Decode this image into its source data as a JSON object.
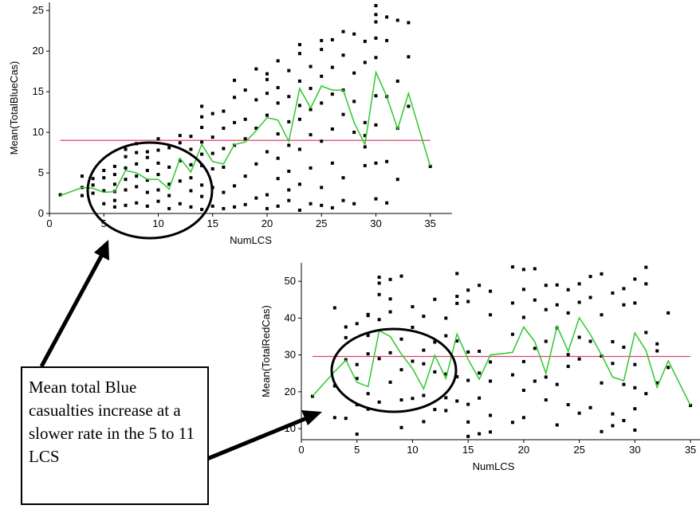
{
  "colors": {
    "points": "#000000",
    "mean_line": "#e0406a",
    "smoother": "#2ec82e",
    "annotation": "#000000"
  },
  "annotation_text": "Mean total Blue casualties increase at a slower rate in the 5 to 11 LCS",
  "chart_data": [
    {
      "type": "scatter",
      "xlabel": "NumLCS",
      "ylabel": "Mean(TotalBlueCas)",
      "xlim": [
        0,
        37
      ],
      "ylim": [
        0,
        26
      ],
      "xticks": [
        "0",
        "5",
        "10",
        "15",
        "20",
        "25",
        "30",
        "35"
      ],
      "yticks": [
        "0",
        "5",
        "10",
        "15",
        "20",
        "25"
      ],
      "mean_line": 9,
      "points": [
        [
          1,
          2.3
        ],
        [
          3,
          2.2
        ],
        [
          3,
          3.2
        ],
        [
          3,
          4.6
        ],
        [
          4,
          2.5
        ],
        [
          4,
          3.5
        ],
        [
          4,
          4.3
        ],
        [
          5,
          1.2
        ],
        [
          5,
          2.8
        ],
        [
          5,
          4.4
        ],
        [
          5,
          5.3
        ],
        [
          6,
          0.8
        ],
        [
          6,
          1.6
        ],
        [
          6,
          2.7
        ],
        [
          6,
          3.6
        ],
        [
          6,
          4.8
        ],
        [
          6,
          5.8
        ],
        [
          7,
          1.0
        ],
        [
          7,
          2.9
        ],
        [
          7,
          4.2
        ],
        [
          7,
          5.6
        ],
        [
          7,
          7.0
        ],
        [
          7,
          7.9
        ],
        [
          8,
          1.3
        ],
        [
          8,
          3.3
        ],
        [
          8,
          4.6
        ],
        [
          8,
          6.1
        ],
        [
          8,
          7.5
        ],
        [
          8,
          8.6
        ],
        [
          9,
          0.9
        ],
        [
          9,
          2.6
        ],
        [
          9,
          4.1
        ],
        [
          9,
          5.3
        ],
        [
          9,
          6.9
        ],
        [
          9,
          7.6
        ],
        [
          10,
          1.5
        ],
        [
          10,
          2.9
        ],
        [
          10,
          4.8
        ],
        [
          10,
          6.2
        ],
        [
          10,
          7.8
        ],
        [
          10,
          9.2
        ],
        [
          11,
          0.6
        ],
        [
          11,
          2.2
        ],
        [
          11,
          3.6
        ],
        [
          11,
          5.7
        ],
        [
          11,
          8.1
        ],
        [
          12,
          1.2
        ],
        [
          12,
          4.0
        ],
        [
          12,
          6.5
        ],
        [
          12,
          8.7
        ],
        [
          12,
          9.6
        ],
        [
          13,
          0.8
        ],
        [
          13,
          2.8
        ],
        [
          13,
          4.4
        ],
        [
          13,
          6.0
        ],
        [
          13,
          7.9
        ],
        [
          13,
          9.5
        ],
        [
          14,
          0.5
        ],
        [
          14,
          2.1
        ],
        [
          14,
          3.5
        ],
        [
          14,
          5.9
        ],
        [
          14,
          7.3
        ],
        [
          14,
          8.8
        ],
        [
          14,
          10.6
        ],
        [
          14,
          11.9
        ],
        [
          14,
          13.2
        ],
        [
          15,
          0.9
        ],
        [
          15,
          3.2
        ],
        [
          15,
          5.5
        ],
        [
          15,
          7.4
        ],
        [
          15,
          9.4
        ],
        [
          15,
          12.3
        ],
        [
          16,
          0.6
        ],
        [
          16,
          2.6
        ],
        [
          16,
          5.7
        ],
        [
          16,
          8.0
        ],
        [
          16,
          10.5
        ],
        [
          16,
          12.6
        ],
        [
          17,
          0.8
        ],
        [
          17,
          3.4
        ],
        [
          17,
          8.4
        ],
        [
          17,
          11.2
        ],
        [
          17,
          14.3
        ],
        [
          17,
          16.4
        ],
        [
          18,
          1.1
        ],
        [
          18,
          4.6
        ],
        [
          18,
          9.2
        ],
        [
          18,
          11.6
        ],
        [
          18,
          15.2
        ],
        [
          19,
          1.9
        ],
        [
          19,
          6.1
        ],
        [
          19,
          10.5
        ],
        [
          19,
          14.0
        ],
        [
          19,
          17.8
        ],
        [
          20,
          0.6
        ],
        [
          20,
          2.3
        ],
        [
          20,
          7.6
        ],
        [
          20,
          12.1
        ],
        [
          20,
          14.8
        ],
        [
          20,
          16.5
        ],
        [
          20,
          17.2
        ],
        [
          21,
          0.9
        ],
        [
          21,
          4.3
        ],
        [
          21,
          6.8
        ],
        [
          21,
          9.8
        ],
        [
          21,
          13.6
        ],
        [
          21,
          15.5
        ],
        [
          21,
          18.8
        ],
        [
          22,
          1.6
        ],
        [
          22,
          2.9
        ],
        [
          22,
          5.2
        ],
        [
          22,
          8.4
        ],
        [
          22,
          11.3
        ],
        [
          22,
          14.4
        ],
        [
          22,
          17.6
        ],
        [
          23,
          0.4
        ],
        [
          23,
          3.6
        ],
        [
          23,
          7.9
        ],
        [
          23,
          11.6
        ],
        [
          23,
          13.3
        ],
        [
          23,
          16.3
        ],
        [
          23,
          19.7
        ],
        [
          23,
          20.8
        ],
        [
          24,
          1.2
        ],
        [
          24,
          5.6
        ],
        [
          24,
          9.7
        ],
        [
          24,
          12.8
        ],
        [
          24,
          15.4
        ],
        [
          24,
          18.1
        ],
        [
          25,
          1.0
        ],
        [
          25,
          3.2
        ],
        [
          25,
          8.9
        ],
        [
          25,
          13.6
        ],
        [
          25,
          16.9
        ],
        [
          25,
          20.2
        ],
        [
          25,
          21.3
        ],
        [
          26,
          0.7
        ],
        [
          26,
          6.2
        ],
        [
          26,
          10.4
        ],
        [
          26,
          14.7
        ],
        [
          26,
          18.0
        ],
        [
          26,
          21.4
        ],
        [
          27,
          1.6
        ],
        [
          27,
          4.4
        ],
        [
          27,
          12.2
        ],
        [
          27,
          15.2
        ],
        [
          27,
          19.5
        ],
        [
          27,
          22.4
        ],
        [
          28,
          1.2
        ],
        [
          28,
          10.0
        ],
        [
          28,
          13.8
        ],
        [
          28,
          17.3
        ],
        [
          28,
          22.1
        ],
        [
          29,
          5.9
        ],
        [
          29,
          8.2
        ],
        [
          29,
          9.6
        ],
        [
          29,
          11.2
        ],
        [
          29,
          18.6
        ],
        [
          29,
          21.2
        ],
        [
          30,
          1.8
        ],
        [
          30,
          6.2
        ],
        [
          30,
          10.9
        ],
        [
          30,
          14.5
        ],
        [
          30,
          19.2
        ],
        [
          30,
          21.6
        ],
        [
          30,
          23.6
        ],
        [
          30,
          24.5
        ],
        [
          30,
          25.6
        ],
        [
          30,
          26.6
        ],
        [
          31,
          1.3
        ],
        [
          31,
          6.4
        ],
        [
          31,
          14.4
        ],
        [
          31,
          21.3
        ],
        [
          31,
          24.2
        ],
        [
          32,
          4.2
        ],
        [
          32,
          10.5
        ],
        [
          32,
          16.3
        ],
        [
          32,
          23.8
        ],
        [
          33,
          13.2
        ],
        [
          33,
          19.3
        ],
        [
          33,
          23.5
        ],
        [
          35,
          5.8
        ]
      ],
      "smoother": {
        "x": [
          1,
          3,
          4,
          5,
          6,
          7,
          8,
          9,
          10,
          11,
          12,
          13,
          14,
          15,
          16,
          17,
          18,
          19,
          20,
          21,
          22,
          23,
          24,
          25,
          26,
          27,
          28,
          29,
          30,
          31,
          32,
          33,
          35
        ],
        "y": [
          2.2,
          3.2,
          3.1,
          2.6,
          2.7,
          5.3,
          5.0,
          4.2,
          4.2,
          3.0,
          6.8,
          5.1,
          8.5,
          6.4,
          6.1,
          8.5,
          8.8,
          10.2,
          11.8,
          11.5,
          8.9,
          15.4,
          13.0,
          15.7,
          15.2,
          15.2,
          11.2,
          8.5,
          17.4,
          14.4,
          10.4,
          14.8,
          5.8
        ]
      }
    },
    {
      "type": "scatter",
      "xlabel": "NumLCS",
      "ylabel": "Mean(TotalRedCas)",
      "xlim": [
        0,
        36
      ],
      "ylim": [
        7,
        55
      ],
      "xticks": [
        "0",
        "5",
        "10",
        "15",
        "20",
        "25",
        "30",
        "35"
      ],
      "yticks": [
        "10",
        "20",
        "30",
        "40",
        "50"
      ],
      "mean_line": 29.6,
      "points": [
        [
          1,
          18.8
        ],
        [
          3,
          13.0
        ],
        [
          3,
          21.6
        ],
        [
          3,
          42.8
        ],
        [
          4,
          12.8
        ],
        [
          4,
          28.7
        ],
        [
          4,
          34.7
        ],
        [
          4,
          37.6
        ],
        [
          5,
          8.5
        ],
        [
          5,
          16.5
        ],
        [
          5,
          23.6
        ],
        [
          5,
          27.4
        ],
        [
          5,
          38.5
        ],
        [
          6,
          15.3
        ],
        [
          6,
          19.5
        ],
        [
          6,
          30.3
        ],
        [
          6,
          35.3
        ],
        [
          6,
          40.7
        ],
        [
          6,
          41.0
        ],
        [
          7,
          17.2
        ],
        [
          7,
          29.0
        ],
        [
          7,
          39.6
        ],
        [
          7,
          46.4
        ],
        [
          7,
          49.5
        ],
        [
          7,
          51.1
        ],
        [
          8,
          22.6
        ],
        [
          8,
          30.6
        ],
        [
          8,
          41.7
        ],
        [
          8,
          45.2
        ],
        [
          8,
          50.5
        ],
        [
          9,
          10.3
        ],
        [
          9,
          17.8
        ],
        [
          9,
          26.0
        ],
        [
          9,
          34.3
        ],
        [
          9,
          51.4
        ],
        [
          10,
          18.2
        ],
        [
          10,
          28.3
        ],
        [
          10,
          37.5
        ],
        [
          10,
          43.1
        ],
        [
          11,
          11.9
        ],
        [
          11,
          19.0
        ],
        [
          11,
          27.6
        ],
        [
          11,
          31.3
        ],
        [
          11,
          40.5
        ],
        [
          12,
          15.2
        ],
        [
          12,
          25.4
        ],
        [
          12,
          33.5
        ],
        [
          12,
          45.1
        ],
        [
          13,
          14.9
        ],
        [
          13,
          18.4
        ],
        [
          13,
          24.8
        ],
        [
          13,
          35.2
        ],
        [
          13,
          40.0
        ],
        [
          14,
          17.5
        ],
        [
          14,
          24.1
        ],
        [
          14,
          33.8
        ],
        [
          14,
          44.0
        ],
        [
          14,
          45.9
        ],
        [
          14,
          52.1
        ],
        [
          15,
          7.9
        ],
        [
          15,
          11.8
        ],
        [
          15,
          16.6
        ],
        [
          15,
          23.1
        ],
        [
          15,
          30.8
        ],
        [
          15,
          44.5
        ],
        [
          15,
          47.6
        ],
        [
          16,
          8.6
        ],
        [
          16,
          18.3
        ],
        [
          16,
          25.1
        ],
        [
          16,
          31.0
        ],
        [
          16,
          48.9
        ],
        [
          17,
          9.1
        ],
        [
          17,
          13.6
        ],
        [
          17,
          22.9
        ],
        [
          17,
          28.1
        ],
        [
          17,
          40.9
        ],
        [
          17,
          47.3
        ],
        [
          19,
          11.7
        ],
        [
          19,
          24.6
        ],
        [
          19,
          35.6
        ],
        [
          19,
          44.1
        ],
        [
          19,
          53.9
        ],
        [
          20,
          13.0
        ],
        [
          20,
          20.4
        ],
        [
          20,
          28.2
        ],
        [
          20,
          40.2
        ],
        [
          20,
          47.8
        ],
        [
          20,
          53.2
        ],
        [
          21,
          22.9
        ],
        [
          21,
          31.8
        ],
        [
          21,
          44.9
        ],
        [
          21,
          53.4
        ],
        [
          22,
          17.8
        ],
        [
          22,
          24.0
        ],
        [
          22,
          33.7
        ],
        [
          22,
          42.3
        ],
        [
          22,
          48.9
        ],
        [
          23,
          11.0
        ],
        [
          23,
          22.0
        ],
        [
          23,
          37.3
        ],
        [
          23,
          43.6
        ],
        [
          23,
          49.0
        ],
        [
          24,
          16.5
        ],
        [
          24,
          26.9
        ],
        [
          24,
          30.1
        ],
        [
          24,
          41.4
        ],
        [
          24,
          47.7
        ],
        [
          25,
          14.2
        ],
        [
          25,
          28.9
        ],
        [
          25,
          34.8
        ],
        [
          25,
          44.3
        ],
        [
          25,
          49.3
        ],
        [
          26,
          15.7
        ],
        [
          26,
          33.7
        ],
        [
          26,
          45.6
        ],
        [
          26,
          51.3
        ],
        [
          27,
          9.2
        ],
        [
          27,
          22.4
        ],
        [
          27,
          29.7
        ],
        [
          27,
          40.9
        ],
        [
          27,
          52.0
        ],
        [
          28,
          10.8
        ],
        [
          28,
          14.0
        ],
        [
          28,
          27.7
        ],
        [
          28,
          33.6
        ],
        [
          28,
          46.8
        ],
        [
          29,
          12.2
        ],
        [
          29,
          22.0
        ],
        [
          29,
          32.1
        ],
        [
          29,
          43.6
        ],
        [
          29,
          48.0
        ],
        [
          30,
          9.6
        ],
        [
          30,
          15.4
        ],
        [
          30,
          21.1
        ],
        [
          30,
          27.4
        ],
        [
          30,
          44.1
        ],
        [
          30,
          50.6
        ],
        [
          31,
          19.5
        ],
        [
          31,
          36.1
        ],
        [
          31,
          49.3
        ],
        [
          31,
          53.8
        ],
        [
          32,
          22.4
        ],
        [
          32,
          31.1
        ],
        [
          32,
          33.0
        ],
        [
          33,
          26.6
        ],
        [
          33,
          41.4
        ],
        [
          35,
          16.3
        ]
      ],
      "smoother": {
        "x": [
          1,
          3,
          4,
          5,
          6,
          7,
          8,
          9,
          10,
          11,
          12,
          13,
          14,
          15,
          16,
          17,
          19,
          20,
          21,
          22,
          23,
          24,
          25,
          26,
          27,
          28,
          29,
          30,
          31,
          32,
          33,
          35
        ],
        "y": [
          18.8,
          25.5,
          28.6,
          22.6,
          21.4,
          36.6,
          35.0,
          30.2,
          26.3,
          20.8,
          29.9,
          23.6,
          35.7,
          28.8,
          23.4,
          30.0,
          30.7,
          37.6,
          33.6,
          25.0,
          37.8,
          31.0,
          40.1,
          35.5,
          30.0,
          24.0,
          23.0,
          36.0,
          31.2,
          21.2,
          28.4,
          16.3
        ]
      }
    }
  ]
}
